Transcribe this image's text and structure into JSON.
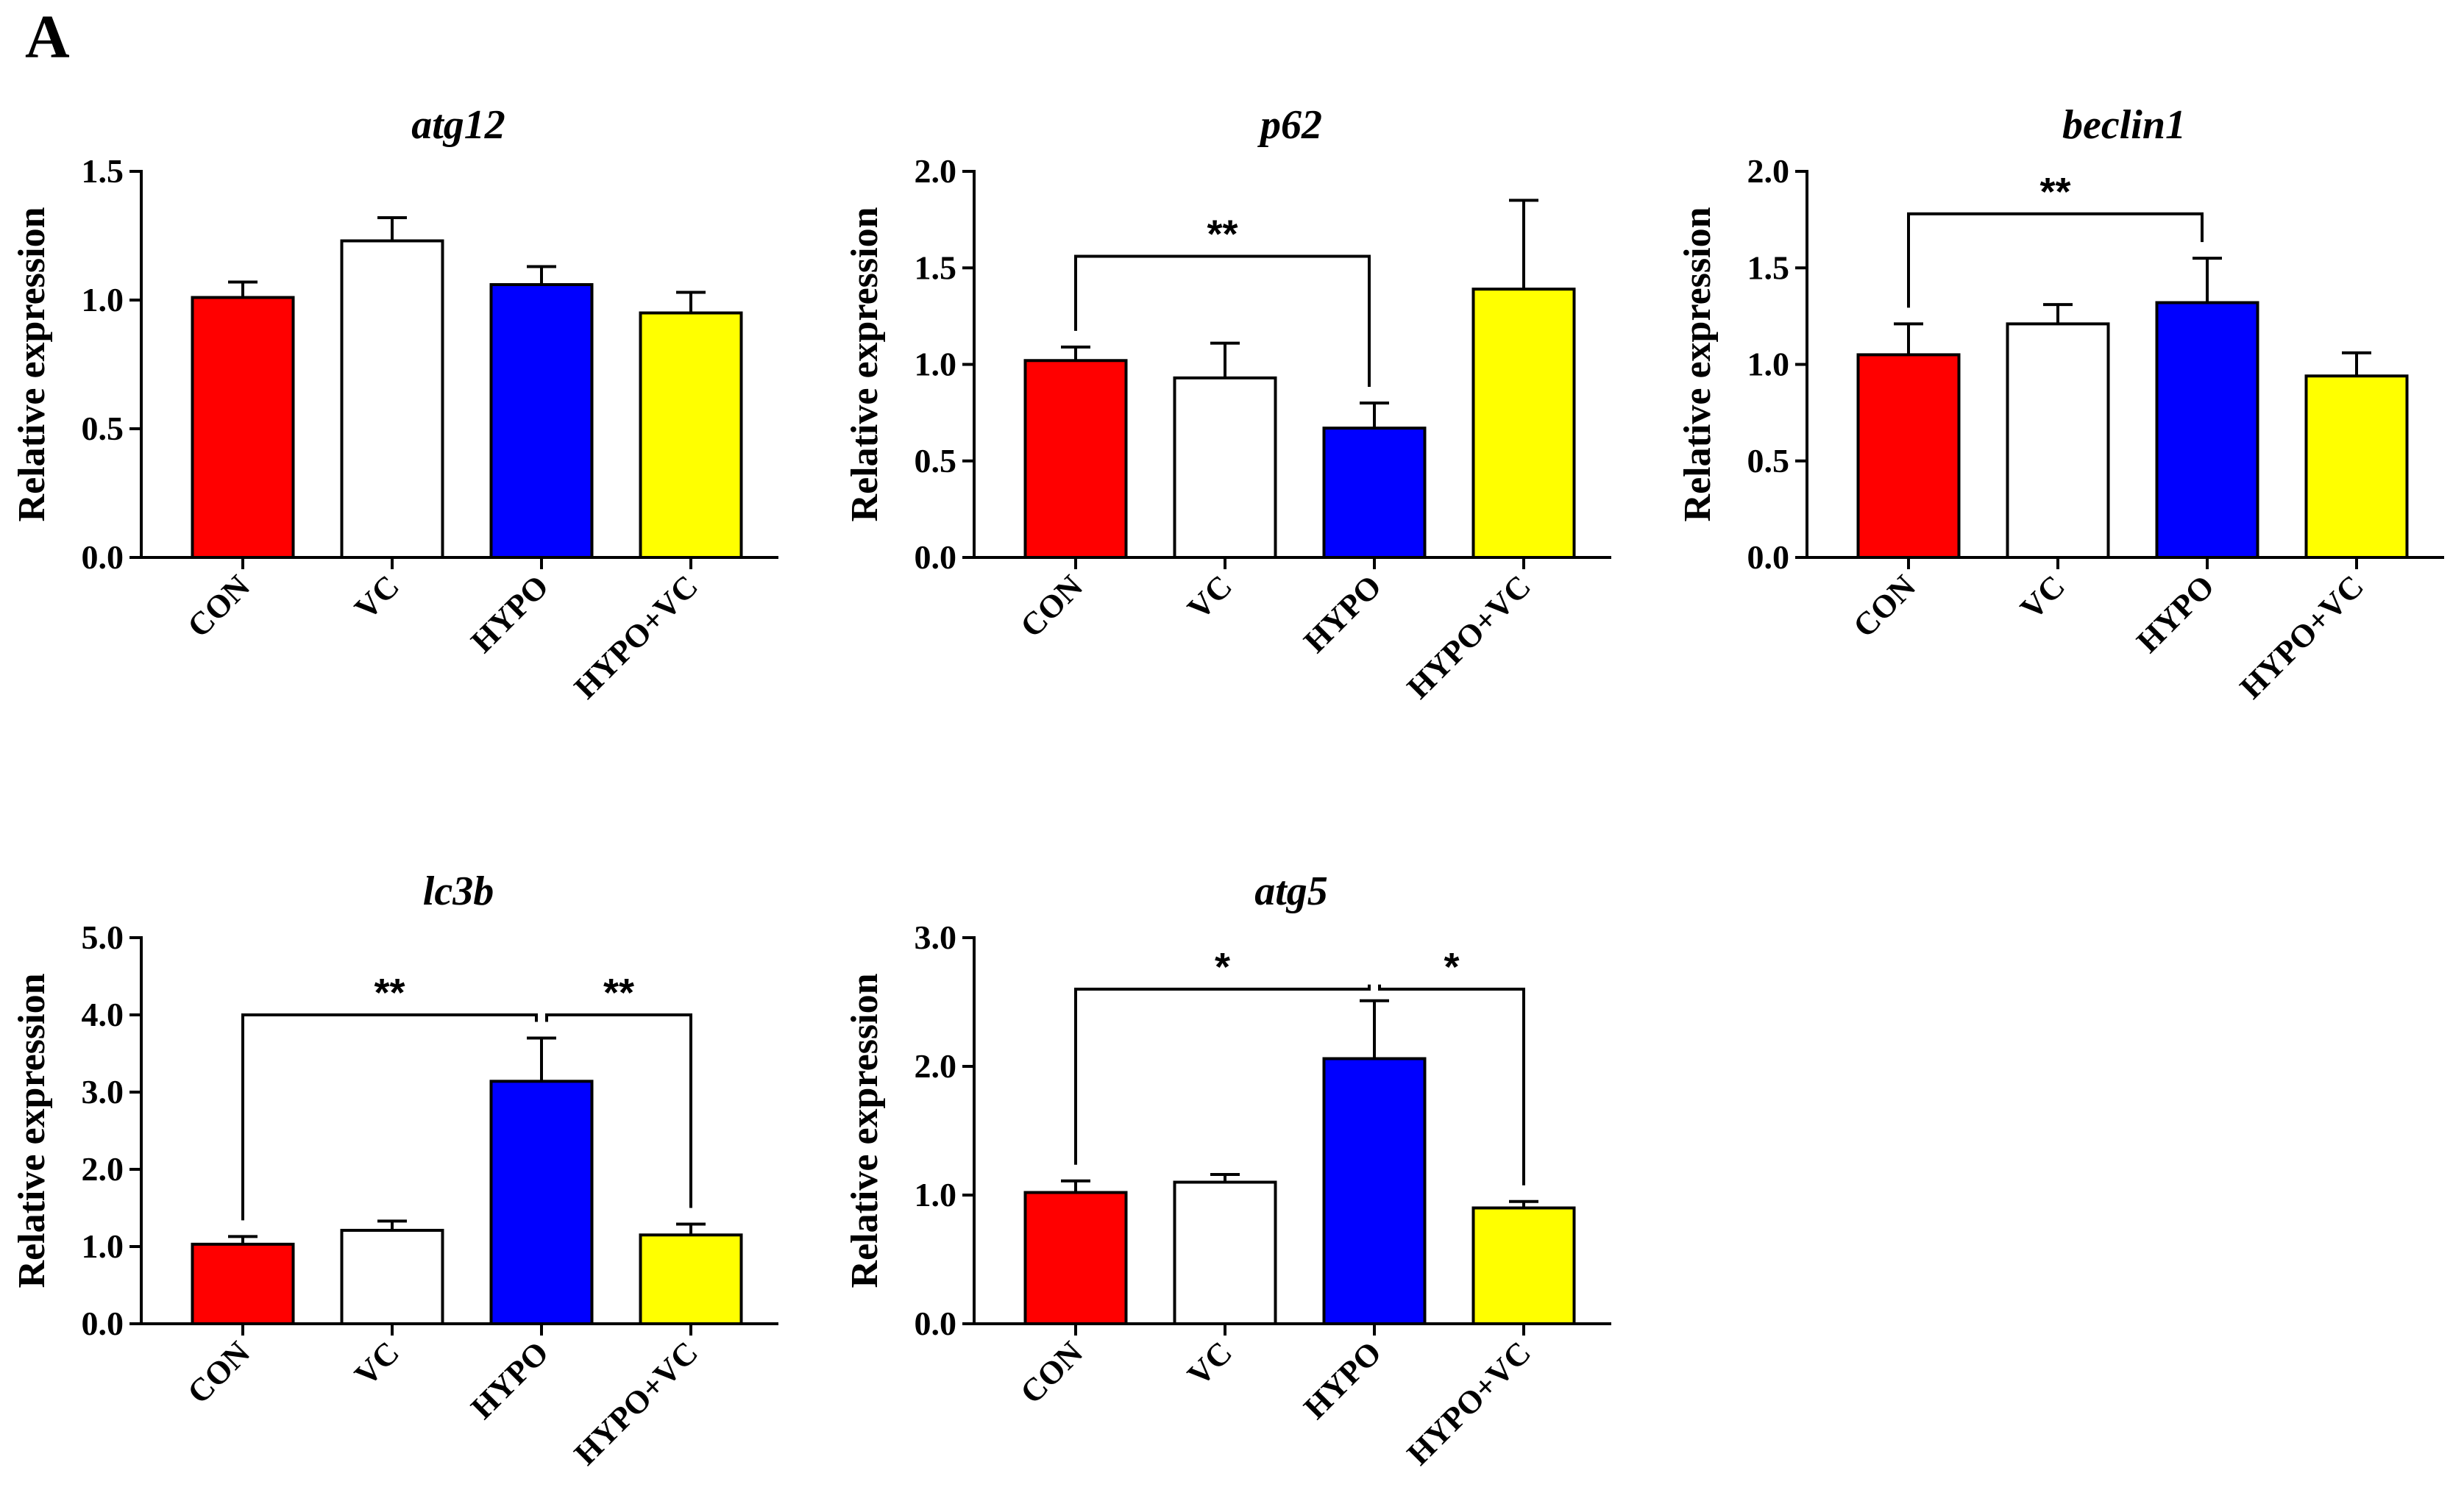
{
  "figure": {
    "panel_letter": "A"
  },
  "chart_data": [
    {
      "type": "bar",
      "title": "atg12",
      "ylabel": "Relative expression",
      "categories": [
        "CON",
        "VC",
        "HYPO",
        "HYPO+VC"
      ],
      "values": [
        1.01,
        1.23,
        1.06,
        0.95
      ],
      "errors": [
        0.06,
        0.09,
        0.07,
        0.08
      ],
      "colors": [
        "#ff0000",
        "#ffffff",
        "#0000ff",
        "#ffff00"
      ],
      "ylim": [
        0,
        1.5
      ],
      "yticks": [
        "0.0",
        "0.5",
        "1.0",
        "1.5"
      ],
      "significance": []
    },
    {
      "type": "bar",
      "title": "p62",
      "ylabel": "Relative expression",
      "categories": [
        "CON",
        "VC",
        "HYPO",
        "HYPO+VC"
      ],
      "values": [
        1.02,
        0.93,
        0.67,
        1.39
      ],
      "errors": [
        0.07,
        0.18,
        0.13,
        0.46
      ],
      "colors": [
        "#ff0000",
        "#ffffff",
        "#0000ff",
        "#ffff00"
      ],
      "ylim": [
        0,
        2.0
      ],
      "yticks": [
        "0.0",
        "0.5",
        "1.0",
        "1.5",
        "2.0"
      ],
      "significance": [
        {
          "from": 0,
          "to": 2,
          "label": "**",
          "level": 1.56
        }
      ]
    },
    {
      "type": "bar",
      "title": "beclin1",
      "ylabel": "Relative expression",
      "categories": [
        "CON",
        "VC",
        "HYPO",
        "HYPO+VC"
      ],
      "values": [
        1.05,
        1.21,
        1.32,
        0.94
      ],
      "errors": [
        0.16,
        0.1,
        0.23,
        0.12
      ],
      "colors": [
        "#ff0000",
        "#ffffff",
        "#0000ff",
        "#ffff00"
      ],
      "ylim": [
        0,
        2.0
      ],
      "yticks": [
        "0.0",
        "0.5",
        "1.0",
        "1.5",
        "2.0"
      ],
      "significance": [
        {
          "from": 0,
          "to": 2,
          "label": "**",
          "level": 1.78
        }
      ]
    },
    {
      "type": "bar",
      "title": "lc3b",
      "ylabel": "Relative expression",
      "categories": [
        "CON",
        "VC",
        "HYPO",
        "HYPO+VC"
      ],
      "values": [
        1.03,
        1.21,
        3.14,
        1.15
      ],
      "errors": [
        0.1,
        0.12,
        0.56,
        0.14
      ],
      "colors": [
        "#ff0000",
        "#ffffff",
        "#0000ff",
        "#ffff00"
      ],
      "ylim": [
        0,
        5.0
      ],
      "yticks": [
        "0.0",
        "1.0",
        "2.0",
        "3.0",
        "4.0",
        "5.0"
      ],
      "significance": [
        {
          "from": 0,
          "to": 2,
          "label": "**",
          "level": 4.0
        },
        {
          "from": 2,
          "to": 3,
          "label": "**",
          "level": 4.0
        }
      ]
    },
    {
      "type": "bar",
      "title": "atg5",
      "ylabel": "Relative expression",
      "categories": [
        "CON",
        "VC",
        "HYPO",
        "HYPO+VC"
      ],
      "values": [
        1.02,
        1.1,
        2.06,
        0.9
      ],
      "errors": [
        0.09,
        0.06,
        0.45,
        0.05
      ],
      "colors": [
        "#ff0000",
        "#ffffff",
        "#0000ff",
        "#ffff00"
      ],
      "ylim": [
        0,
        3.0
      ],
      "yticks": [
        "0.0",
        "1.0",
        "2.0",
        "3.0"
      ],
      "significance": [
        {
          "from": 0,
          "to": 2,
          "label": "*",
          "level": 2.6
        },
        {
          "from": 2,
          "to": 3,
          "label": "*",
          "level": 2.6
        }
      ]
    }
  ]
}
